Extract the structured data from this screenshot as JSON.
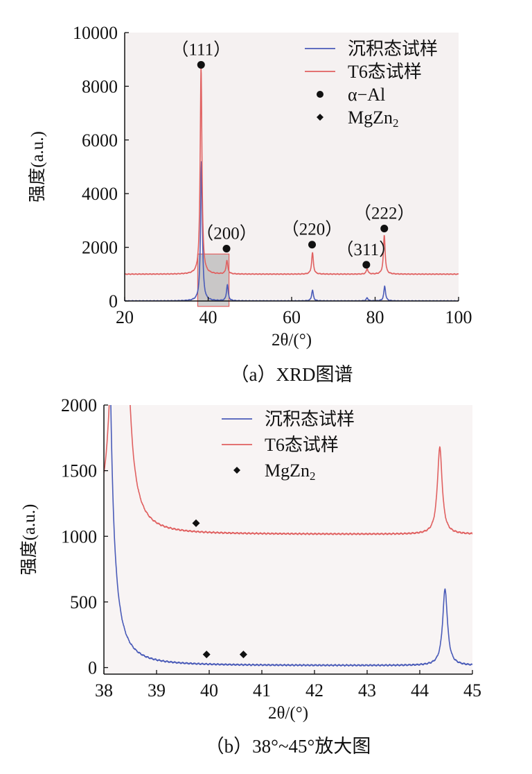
{
  "colors": {
    "deposited": "#4a5bb8",
    "t6": "#e06060",
    "axis": "#111111"
  },
  "chart_data": [
    {
      "type": "line",
      "caption": "（a）XRD图谱",
      "xlabel": "2θ/(°)",
      "ylabel": "强度(a.u.)",
      "xlim": [
        20,
        100
      ],
      "ylim": [
        0,
        10000
      ],
      "xticks": [
        20,
        40,
        60,
        80,
        100
      ],
      "yticks": [
        0,
        2000,
        4000,
        6000,
        8000,
        10000
      ],
      "legend": [
        {
          "label": "沉积态试样",
          "kind": "line",
          "series": "deposited"
        },
        {
          "label": "T6态试样",
          "kind": "line",
          "series": "t6"
        },
        {
          "label": "α−Al",
          "kind": "circle"
        },
        {
          "label": "MgZn",
          "sub": "2",
          "kind": "diamond"
        }
      ],
      "series": [
        {
          "name": "沉积态试样",
          "key": "deposited",
          "baseline": 0,
          "peaks": [
            {
              "x": 38.4,
              "h": 5200,
              "w": 0.25
            },
            {
              "x": 44.6,
              "h": 600,
              "w": 0.25
            },
            {
              "x": 65.0,
              "h": 400,
              "w": 0.25
            },
            {
              "x": 78.1,
              "h": 120,
              "w": 0.25
            },
            {
              "x": 82.3,
              "h": 550,
              "w": 0.25
            }
          ]
        },
        {
          "name": "T6态试样",
          "key": "t6",
          "baseline": 1000,
          "peaks": [
            {
              "x": 38.3,
              "h": 7700,
              "w": 0.25
            },
            {
              "x": 44.5,
              "h": 500,
              "w": 0.25
            },
            {
              "x": 65.0,
              "h": 800,
              "w": 0.25
            },
            {
              "x": 78.1,
              "h": 200,
              "w": 0.25
            },
            {
              "x": 82.2,
              "h": 1450,
              "w": 0.25
            }
          ]
        }
      ],
      "markers": [
        {
          "shape": "circle",
          "x": 38.3,
          "y": 8800,
          "label": "（111）"
        },
        {
          "shape": "circle",
          "x": 44.4,
          "y": 1950,
          "label": "（200）"
        },
        {
          "shape": "circle",
          "x": 64.9,
          "y": 2100,
          "label": "（220）"
        },
        {
          "shape": "circle",
          "x": 77.9,
          "y": 1350,
          "label": "（311）"
        },
        {
          "shape": "circle",
          "x": 82.2,
          "y": 2700,
          "label": "（222）"
        }
      ],
      "zoom_box": {
        "x": [
          37.5,
          45
        ],
        "y": [
          -200,
          1750
        ]
      }
    },
    {
      "type": "line",
      "caption": "（b）38°~45°放大图",
      "xlabel": "2θ/(°)",
      "ylabel": "强度(a.u.)",
      "xlim": [
        38,
        45
      ],
      "ylim": [
        -50,
        2000
      ],
      "xticks": [
        38,
        39,
        40,
        41,
        42,
        43,
        44,
        45
      ],
      "yticks": [
        0,
        500,
        1000,
        1500,
        2000
      ],
      "legend": [
        {
          "label": "沉积态试样",
          "kind": "line",
          "series": "deposited"
        },
        {
          "label": "T6态试样",
          "kind": "line",
          "series": "t6"
        },
        {
          "label": "MgZn",
          "sub": "2",
          "kind": "diamond"
        }
      ],
      "series": [
        {
          "name": "沉积态试样",
          "key": "deposited",
          "baseline": 15,
          "peaks": [
            {
              "x": 38.0,
              "h": 9000,
              "w": 0.07
            },
            {
              "x": 44.48,
              "h": 580,
              "w": 0.055
            }
          ]
        },
        {
          "name": "T6态试样",
          "key": "t6",
          "baseline": 1015,
          "peaks": [
            {
              "x": 38.3,
              "h": 9000,
              "w": 0.07
            },
            {
              "x": 44.38,
              "h": 660,
              "w": 0.055
            }
          ]
        }
      ],
      "markers": [
        {
          "shape": "diamond",
          "x": 39.75,
          "y": 1100
        },
        {
          "shape": "diamond",
          "x": 39.95,
          "y": 100
        },
        {
          "shape": "diamond",
          "x": 40.65,
          "y": 100
        }
      ]
    }
  ]
}
